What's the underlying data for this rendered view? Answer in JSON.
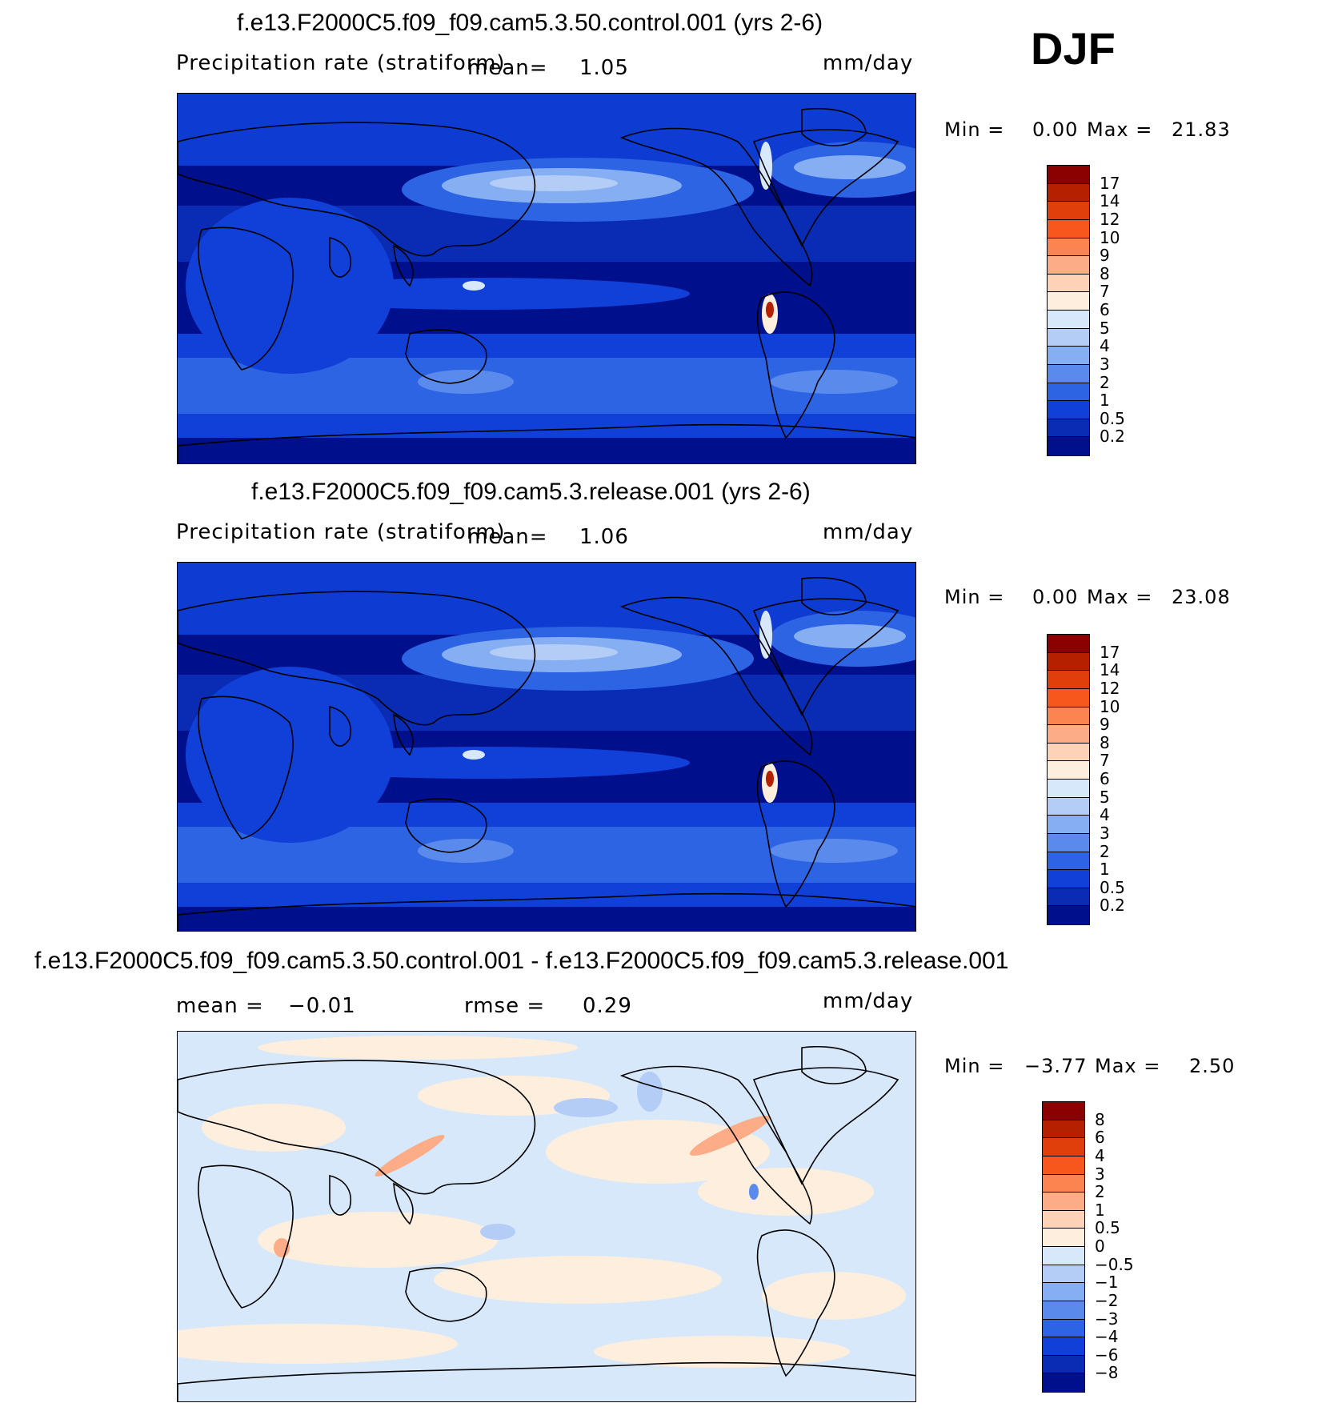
{
  "season": "DJF",
  "panels": [
    {
      "title": "f.e13.F2000C5.f09_f09.cam5.3.50.control.001 (yrs 2-6)",
      "variable": "Precipitation rate (stratiform)",
      "stat_label": "mean=",
      "stat_value": "1.05",
      "units": "mm/day",
      "min_label": "Min =",
      "min_value": "0.00",
      "max_label": "Max =",
      "max_value": "21.83",
      "colorbar_labels": [
        "17",
        "14",
        "12",
        "10",
        "9",
        "8",
        "7",
        "6",
        "5",
        "4",
        "3",
        "2",
        "1",
        "0.5",
        "0.2"
      ],
      "colorbar_colors": [
        "#8b0000",
        "#b52100",
        "#e03e0b",
        "#f7571c",
        "#fb8450",
        "#fcac86",
        "#fdd2b6",
        "#fdeede",
        "#d8e8fb",
        "#b3cdf7",
        "#86aef2",
        "#5a8bec",
        "#2d64e4",
        "#1040d8",
        "#0a2cb5",
        "#000f8b"
      ]
    },
    {
      "title": "f.e13.F2000C5.f09_f09.cam5.3.release.001 (yrs 2-6)",
      "variable": "Precipitation rate (stratiform)",
      "stat_label": "mean=",
      "stat_value": "1.06",
      "units": "mm/day",
      "min_label": "Min =",
      "min_value": "0.00",
      "max_label": "Max =",
      "max_value": "23.08",
      "colorbar_labels": [
        "17",
        "14",
        "12",
        "10",
        "9",
        "8",
        "7",
        "6",
        "5",
        "4",
        "3",
        "2",
        "1",
        "0.5",
        "0.2"
      ],
      "colorbar_colors": [
        "#8b0000",
        "#b52100",
        "#e03e0b",
        "#f7571c",
        "#fb8450",
        "#fcac86",
        "#fdd2b6",
        "#fdeede",
        "#d8e8fb",
        "#b3cdf7",
        "#86aef2",
        "#5a8bec",
        "#2d64e4",
        "#1040d8",
        "#0a2cb5",
        "#000f8b"
      ]
    },
    {
      "title": "f.e13.F2000C5.f09_f09.cam5.3.50.control.001 - f.e13.F2000C5.f09_f09.cam5.3.release.001",
      "mean_label": "mean =",
      "mean_value": "−0.01",
      "rmse_label": "rmse =",
      "rmse_value": "0.29",
      "units": "mm/day",
      "min_label": "Min =",
      "min_value": "−3.77",
      "max_label": "Max =",
      "max_value": "2.50",
      "colorbar_labels": [
        "8",
        "6",
        "4",
        "3",
        "2",
        "1",
        "0.5",
        "0",
        "−0.5",
        "−1",
        "−2",
        "−3",
        "−4",
        "−6",
        "−8"
      ],
      "colorbar_colors": [
        "#8b0000",
        "#b52100",
        "#e03e0b",
        "#f7571c",
        "#fb8450",
        "#fcac86",
        "#fdd2b6",
        "#fdeede",
        "#d8e8fb",
        "#b3cdf7",
        "#86aef2",
        "#5a8bec",
        "#2d64e4",
        "#1040d8",
        "#0a2cb5",
        "#000f8b"
      ]
    }
  ],
  "colors": {
    "map_background_precip": "#000f8b",
    "map_background_diff": "#d8e8fb",
    "coastline": "#000000"
  }
}
